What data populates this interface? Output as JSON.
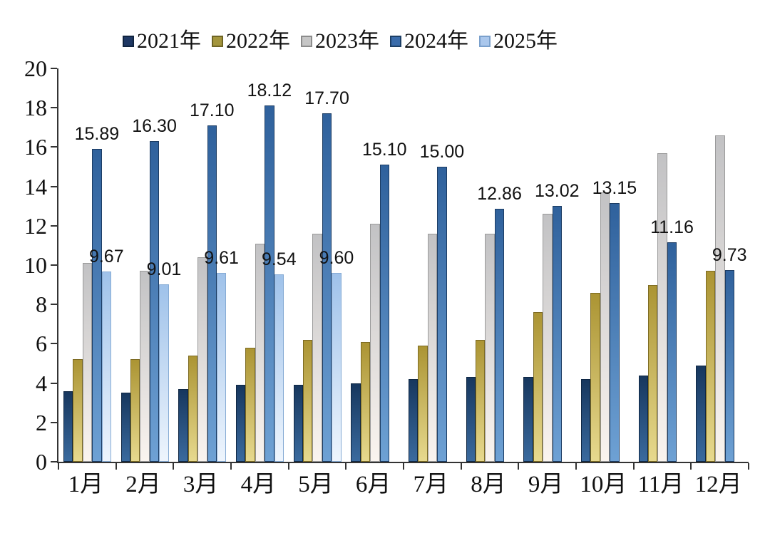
{
  "chart": {
    "background": "#ffffff",
    "axis_color": "#333333",
    "text_color": "#111111",
    "ytick_labels": [
      "0",
      "2",
      "4",
      "6",
      "8",
      "10",
      "12",
      "14",
      "16",
      "18",
      "20"
    ]
  },
  "legend": {
    "position": "top",
    "items": [
      {
        "label": "2021年",
        "color": "#1f3864",
        "border": "#10243f"
      },
      {
        "label": "2022年",
        "color": "#a3953c",
        "border": "#6e6425"
      },
      {
        "label": "2023年",
        "color": "#c6c6c6",
        "border": "#8c8c8c"
      },
      {
        "label": "2024年",
        "color": "#3a6cab",
        "border": "#1d3f66"
      },
      {
        "label": "2025年",
        "color": "#aac7ec",
        "border": "#7aa0cc"
      }
    ]
  },
  "chart_data": {
    "type": "bar",
    "title": "",
    "xlabel": "",
    "ylabel": "",
    "ylim": [
      0,
      20
    ],
    "ytick_step": 2,
    "grid": false,
    "legend_position": "top",
    "categories": [
      "1月",
      "2月",
      "3月",
      "4月",
      "5月",
      "6月",
      "7月",
      "8月",
      "9月",
      "10月",
      "11月",
      "12月"
    ],
    "series": [
      {
        "name": "2021年",
        "values": [
          3.6,
          3.5,
          3.7,
          3.9,
          3.9,
          4.0,
          4.2,
          4.3,
          4.3,
          4.2,
          4.4,
          4.9
        ],
        "data_labels": false,
        "color_top": "#17375e",
        "color_bottom": "#3a6a9e",
        "border": "#0f2744"
      },
      {
        "name": "2022年",
        "values": [
          5.2,
          5.2,
          5.4,
          5.8,
          6.2,
          6.1,
          5.9,
          6.2,
          7.6,
          8.6,
          9.0,
          9.7
        ],
        "data_labels": false,
        "color_top": "#ab9433",
        "color_bottom": "#e7d98e",
        "border": "#7d6b22"
      },
      {
        "name": "2023年",
        "values": [
          10.1,
          9.7,
          10.4,
          11.1,
          11.6,
          12.1,
          11.6,
          11.6,
          12.6,
          13.7,
          15.7,
          16.6
        ],
        "data_labels": false,
        "color_top": "#c2c2c4",
        "color_bottom": "#faf4ef",
        "border": "#9a9a9a"
      },
      {
        "name": "2024年",
        "values": [
          15.89,
          16.3,
          17.1,
          18.12,
          17.7,
          15.1,
          15.0,
          12.86,
          13.02,
          13.15,
          11.16,
          9.73
        ],
        "data_labels": true,
        "label_decimals": 2,
        "color_top": "#2f619c",
        "color_bottom": "#6ea1d4",
        "border": "#1c3c63"
      },
      {
        "name": "2025年",
        "values": [
          9.67,
          9.01,
          9.61,
          9.54,
          9.6,
          null,
          null,
          null,
          null,
          null,
          null,
          null
        ],
        "data_labels": true,
        "label_decimals": 2,
        "color_top": "#9fc2ea",
        "color_bottom": "#eef5fd",
        "border": "#86abd4"
      }
    ]
  }
}
